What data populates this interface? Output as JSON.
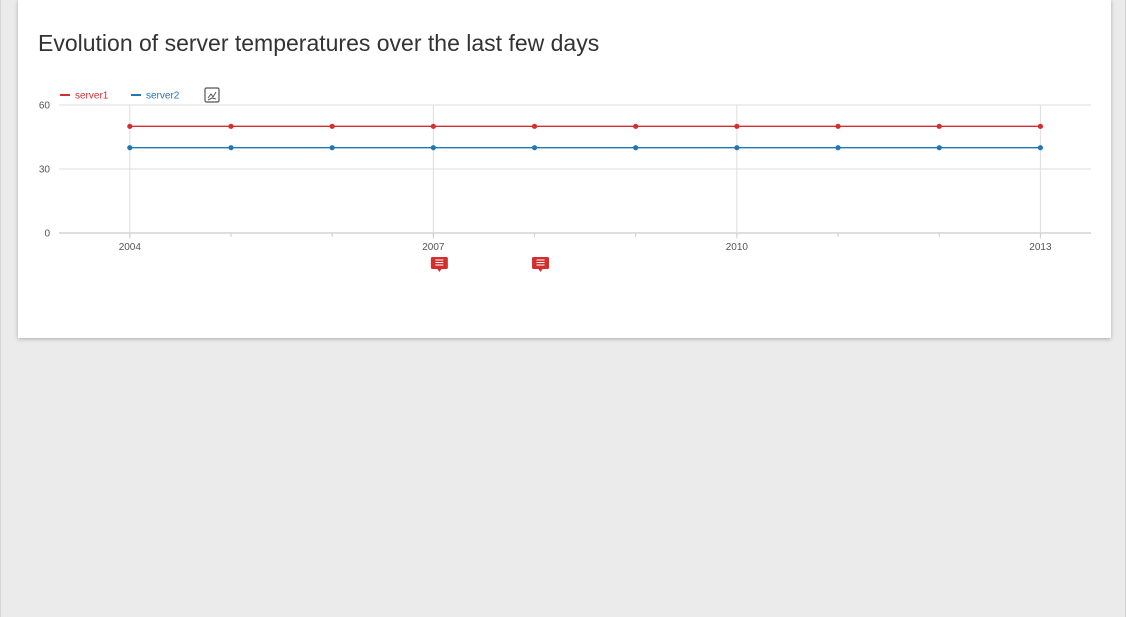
{
  "title": "Evolution of server temperatures over the last few days",
  "chart_data": {
    "type": "line",
    "title": "Evolution of server temperatures over the last few days",
    "x": [
      2004,
      2005,
      2006,
      2007,
      2008,
      2009,
      2010,
      2011,
      2012,
      2013
    ],
    "x_tick_labels": [
      "2004",
      "2007",
      "2010",
      "2013"
    ],
    "y_tick_labels": [
      "0",
      "30",
      "60"
    ],
    "xlim": [
      2003.3,
      2013.5
    ],
    "ylim": [
      0,
      60
    ],
    "grid": true,
    "legend_position": "top-left",
    "series": [
      {
        "name": "server1",
        "color": "#d32f2f",
        "values": [
          50,
          50,
          50,
          50,
          50,
          50,
          50,
          50,
          50,
          50
        ]
      },
      {
        "name": "server2",
        "color": "#1f77b4",
        "values": [
          40,
          40,
          40,
          40,
          40,
          40,
          40,
          40,
          40,
          40
        ]
      }
    ],
    "annotations": [
      {
        "x": 2007,
        "icon": "comment-icon",
        "color": "#d32f2f"
      },
      {
        "x": 2008,
        "icon": "comment-icon",
        "color": "#d32f2f"
      }
    ]
  }
}
